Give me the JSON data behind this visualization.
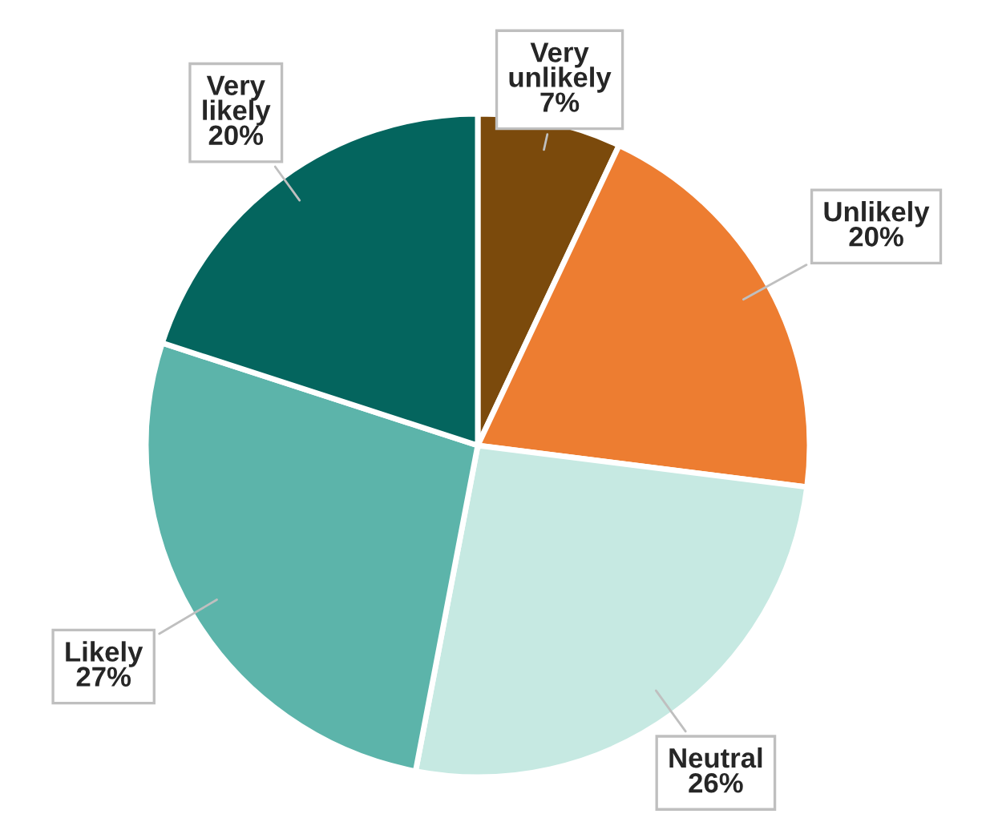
{
  "chart_data": {
    "type": "pie",
    "categories": [
      "Very unlikely",
      "Unlikely",
      "Neutral",
      "Likely",
      "Very likely"
    ],
    "values": [
      7,
      20,
      26,
      27,
      20
    ],
    "colors": [
      "#7b4a0c",
      "#ed7d31",
      "#c6e9e2",
      "#5cb4aa",
      "#04655e"
    ],
    "value_labels": [
      "7%",
      "20%",
      "26%",
      "27%",
      "20%"
    ],
    "legend": false
  }
}
